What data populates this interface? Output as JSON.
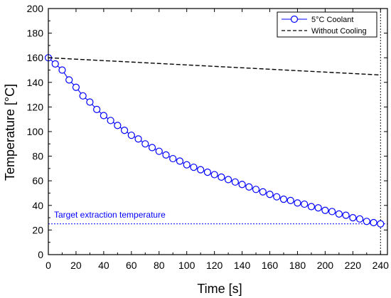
{
  "chart_data": {
    "type": "line",
    "xlabel": "Time [s]",
    "ylabel": "Temperature [°C]",
    "xlim": [
      0,
      245
    ],
    "ylim": [
      0,
      200
    ],
    "xticks": [
      0,
      20,
      40,
      60,
      80,
      100,
      120,
      140,
      160,
      180,
      200,
      220,
      240
    ],
    "yticks": [
      0,
      20,
      40,
      60,
      80,
      100,
      120,
      140,
      160,
      180,
      200
    ],
    "grid": false,
    "legend_position": "top-right",
    "series": [
      {
        "name": "5°C Coolant",
        "color": "#0000ff",
        "style": "solid-with-open-circles",
        "x": [
          0,
          5,
          10,
          15,
          20,
          25,
          30,
          35,
          40,
          45,
          50,
          55,
          60,
          65,
          70,
          75,
          80,
          85,
          90,
          95,
          100,
          105,
          110,
          115,
          120,
          125,
          130,
          135,
          140,
          145,
          150,
          155,
          160,
          165,
          170,
          175,
          180,
          185,
          190,
          195,
          200,
          205,
          210,
          215,
          220,
          225,
          230,
          235,
          240
        ],
        "values": [
          160,
          155,
          150,
          142,
          136,
          129,
          124,
          118,
          113,
          109,
          105,
          101,
          97,
          94,
          90,
          87,
          84,
          81,
          78,
          76,
          73,
          71,
          69,
          67,
          65,
          63,
          61,
          59,
          57,
          55,
          53,
          51,
          49,
          47,
          45,
          44,
          42,
          41,
          39,
          38,
          36,
          35,
          33,
          32,
          30,
          29,
          27,
          26,
          25
        ]
      },
      {
        "name": "Without Cooling",
        "color": "#000000",
        "style": "dashed",
        "x": [
          0,
          240
        ],
        "values": [
          160,
          146
        ]
      }
    ],
    "reference_lines": [
      {
        "axis": "y",
        "value": 25,
        "color": "#0000ff",
        "style": "dotted",
        "label": "Target extraction temperature"
      },
      {
        "axis": "x",
        "value": 240,
        "color": "#000000",
        "style": "dotted",
        "label": ""
      }
    ]
  }
}
